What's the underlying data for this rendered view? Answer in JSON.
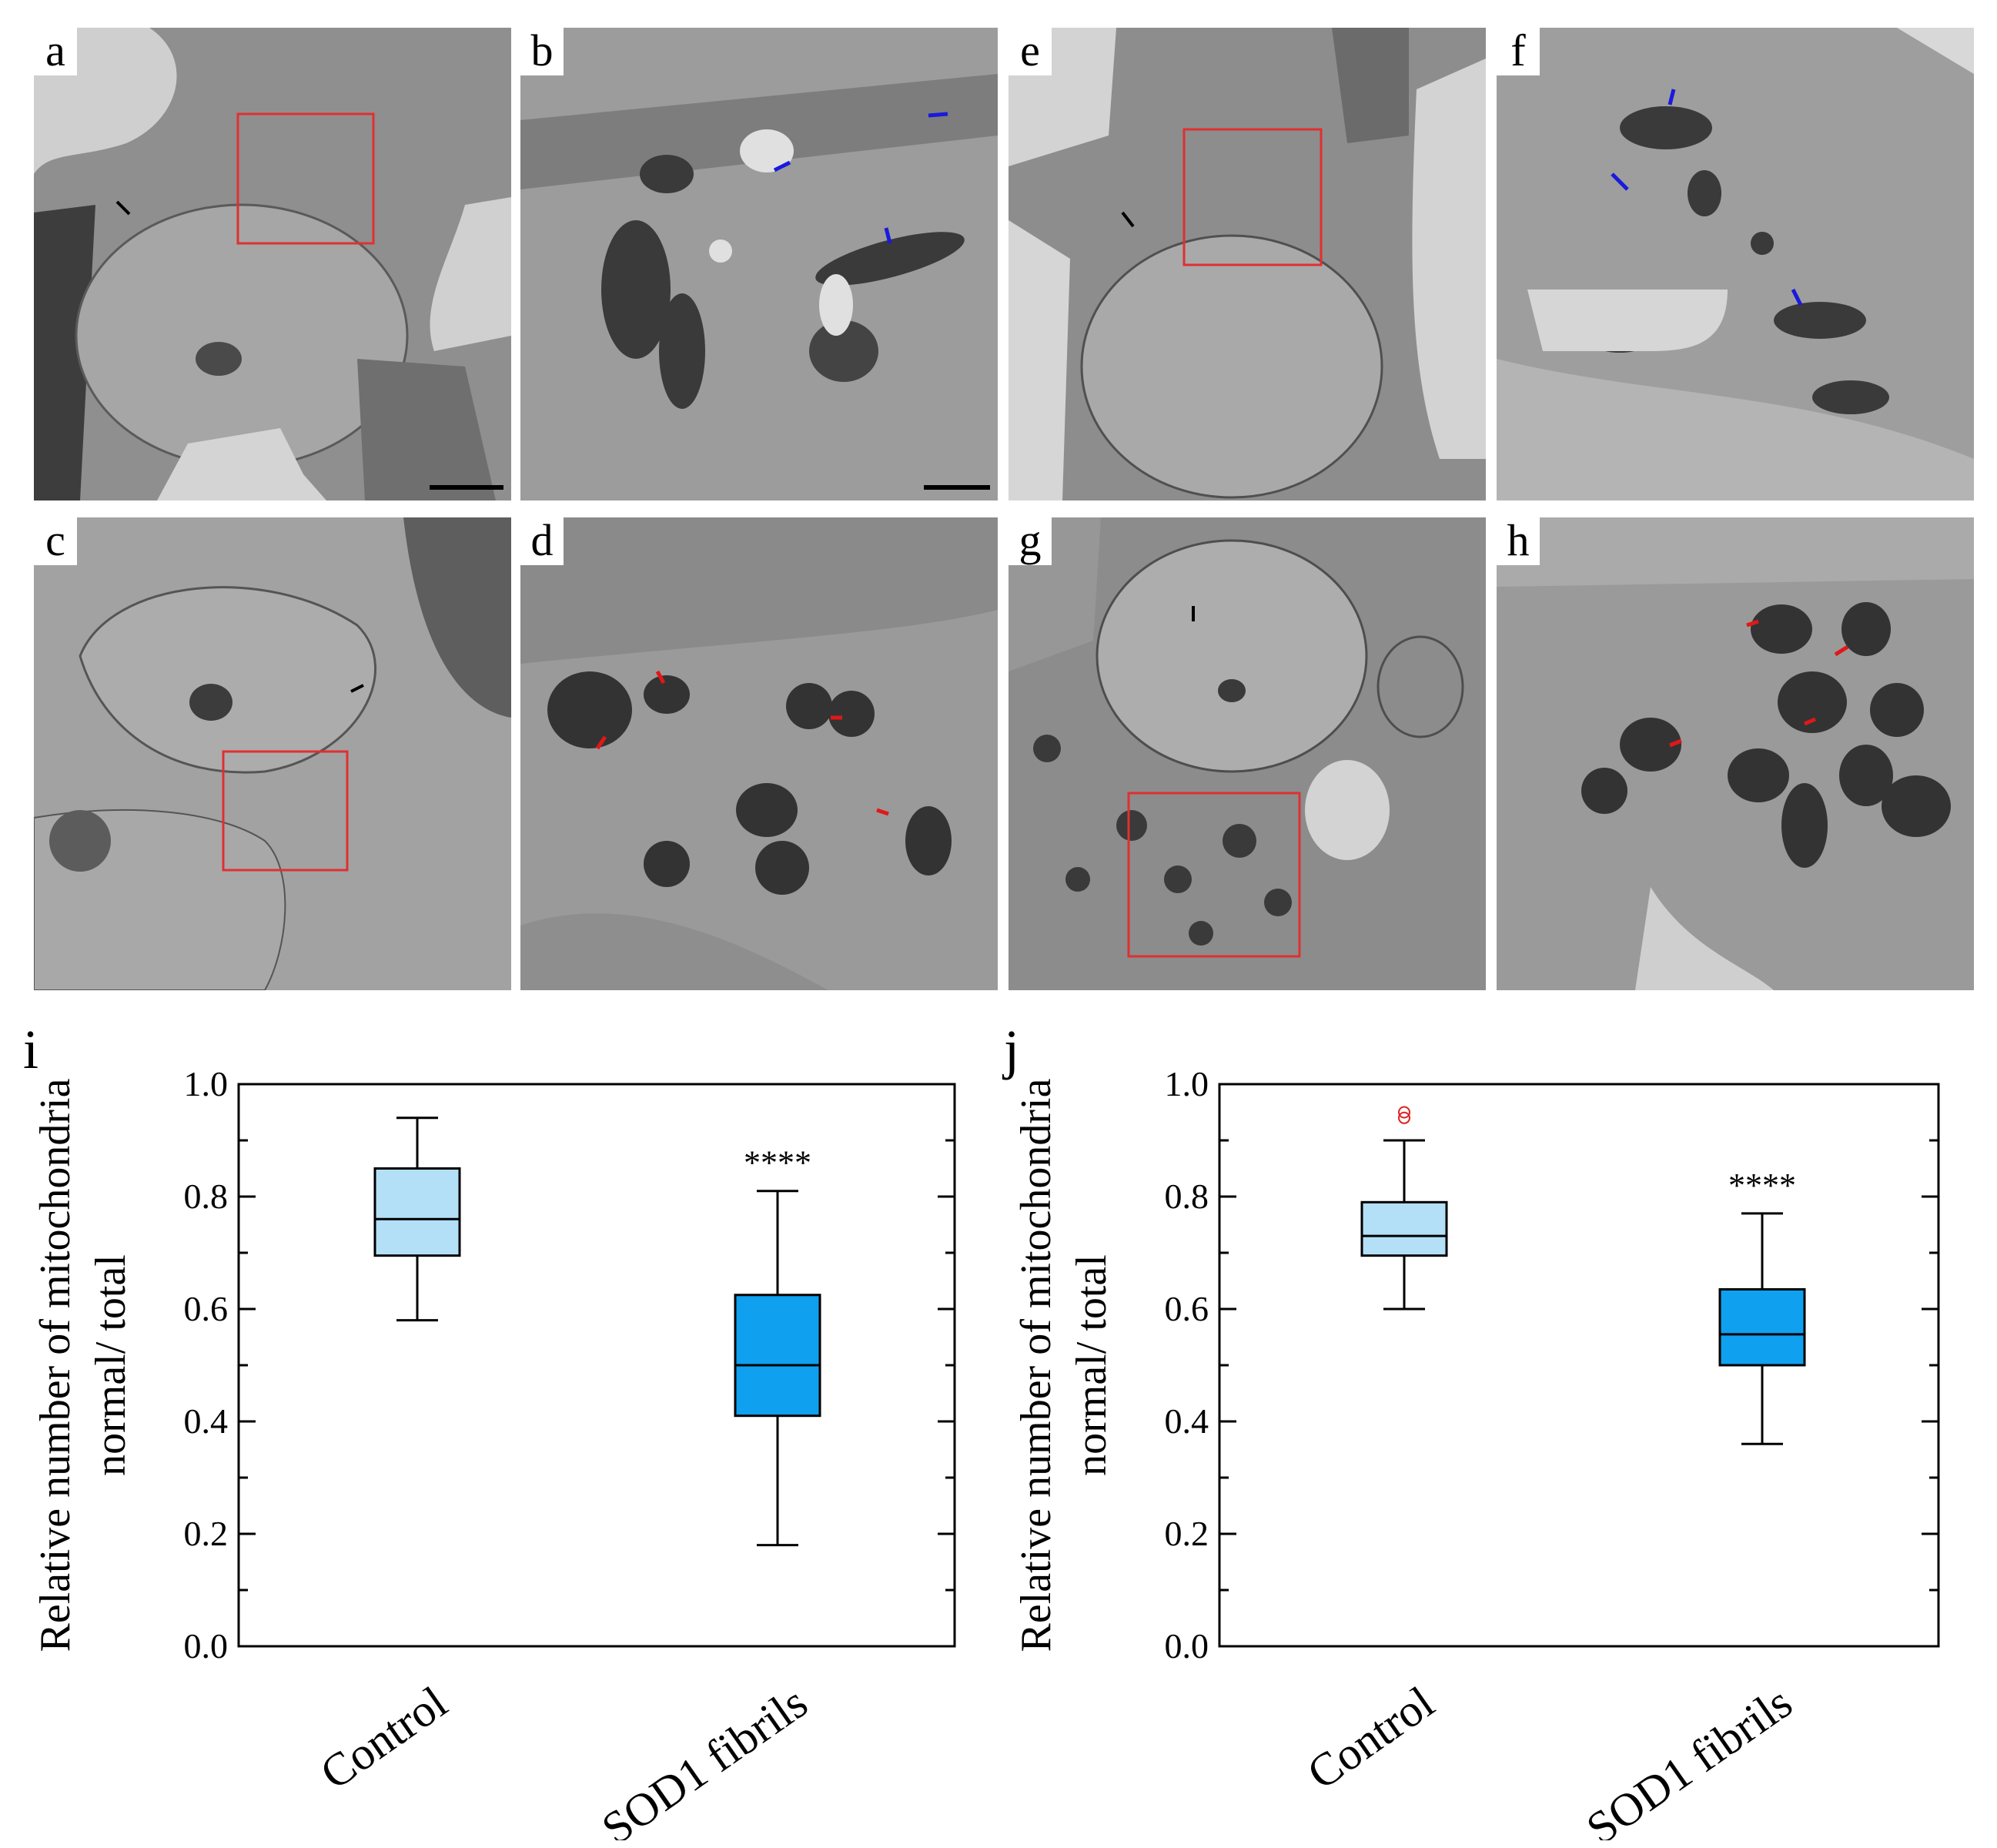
{
  "panels": [
    {
      "id": "a",
      "label": "a"
    },
    {
      "id": "b",
      "label": "b"
    },
    {
      "id": "e",
      "label": "e"
    },
    {
      "id": "f",
      "label": "f"
    },
    {
      "id": "c",
      "label": "c"
    },
    {
      "id": "d",
      "label": "d"
    },
    {
      "id": "g",
      "label": "g"
    },
    {
      "id": "h",
      "label": "h"
    }
  ],
  "colors": {
    "control_box": "#b3e0f7",
    "sod1_box": "#0fa0ef",
    "normal_arrow": "#1a1adc",
    "abnormal_arrow": "#e01818",
    "roi_box": "#e03030",
    "outlier": "#e02020"
  },
  "chart_data": [
    {
      "type": "box",
      "panel_label": "i",
      "ylabel_line1": "Relative number of mitochondria",
      "ylabel_line2": "normal/ total",
      "categories": [
        "Control",
        "SOD1 fibrils"
      ],
      "ylim": [
        0.0,
        1.0
      ],
      "yticks": [
        "0.0",
        "0.2",
        "0.4",
        "0.6",
        "0.8",
        "1.0"
      ],
      "boxes": [
        {
          "min": 0.58,
          "q1": 0.695,
          "median": 0.76,
          "q3": 0.85,
          "max": 0.94,
          "outliers": [],
          "annotation": ""
        },
        {
          "min": 0.18,
          "q1": 0.41,
          "median": 0.5,
          "q3": 0.625,
          "max": 0.81,
          "outliers": [],
          "annotation": "****"
        }
      ]
    },
    {
      "type": "box",
      "panel_label": "j",
      "ylabel_line1": "Relative number of mitochondria",
      "ylabel_line2": "normal/ total",
      "categories": [
        "Control",
        "SOD1 fibrils"
      ],
      "ylim": [
        0.0,
        1.0
      ],
      "yticks": [
        "0.0",
        "0.2",
        "0.4",
        "0.6",
        "0.8",
        "1.0"
      ],
      "boxes": [
        {
          "min": 0.6,
          "q1": 0.695,
          "median": 0.73,
          "q3": 0.79,
          "max": 0.9,
          "outliers": [
            0.94,
            0.95
          ],
          "annotation": ""
        },
        {
          "min": 0.36,
          "q1": 0.5,
          "median": 0.555,
          "q3": 0.635,
          "max": 0.77,
          "outliers": [],
          "annotation": "****"
        }
      ]
    }
  ]
}
